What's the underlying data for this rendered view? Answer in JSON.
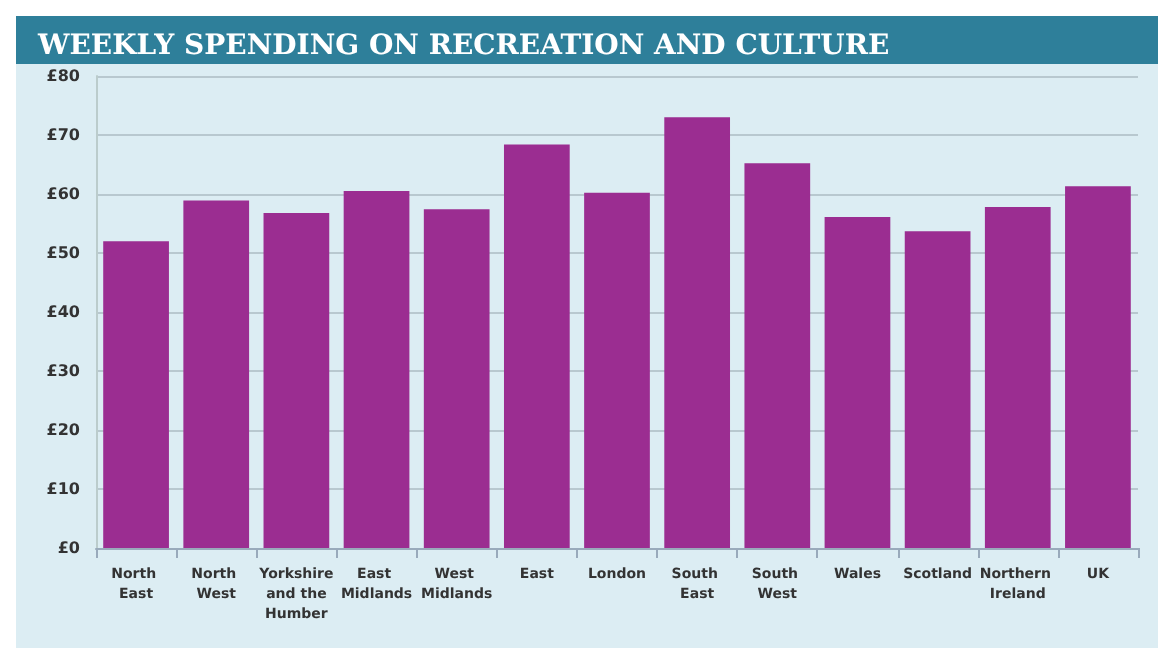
{
  "chart_data": {
    "type": "bar",
    "title": "WEEKLY SPENDING ON RECREATION AND CULTURE",
    "categories": [
      "North East",
      "North West",
      "Yorkshire and the Humber",
      "East Midlands",
      "West Midlands",
      "East",
      "London",
      "South East",
      "South West",
      "Wales",
      "Scotland",
      "Northern Ireland",
      "UK"
    ],
    "values": [
      52.0,
      58.9,
      56.8,
      60.5,
      57.4,
      68.4,
      60.2,
      73.0,
      65.2,
      56.1,
      53.7,
      57.8,
      61.3
    ],
    "color": "#9b2d91",
    "ylim": [
      0,
      80
    ],
    "yticks": [
      {
        "value": 0,
        "label": "£0"
      },
      {
        "value": 10,
        "label": "£10"
      },
      {
        "value": 20,
        "label": "£20"
      },
      {
        "value": 30,
        "label": "£30"
      },
      {
        "value": 40,
        "label": "£40"
      },
      {
        "value": 50,
        "label": "£50"
      },
      {
        "value": 60,
        "label": "£60"
      },
      {
        "value": 70,
        "label": "£70"
      },
      {
        "value": 80,
        "label": "£80"
      }
    ],
    "grid": "y"
  }
}
